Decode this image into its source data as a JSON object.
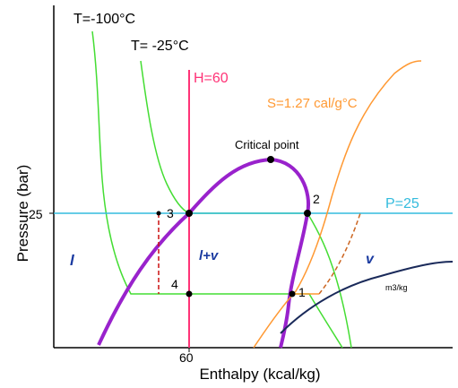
{
  "axes": {
    "xlabel": "Enthalpy (kcal/kg)",
    "ylabel": "Pressure (bar)",
    "x_tick": "60",
    "y_tick": "25"
  },
  "isotherms": {
    "t1_label": "T=-100°C",
    "t2_label": "T= -25°C",
    "color": "#44dd33"
  },
  "isenthalp": {
    "label": "H=60",
    "color": "#ff3377"
  },
  "isentrope": {
    "label": "S=1.27 cal/g°C",
    "color": "#ff9933"
  },
  "isobar": {
    "label": "P=25",
    "color": "#33bbdd"
  },
  "dome": {
    "label": "Critical point",
    "color": "#9922cc"
  },
  "specific_volume": {
    "label": "m3/kg",
    "color": "#1a2a5a"
  },
  "regions": {
    "liquid": "l",
    "mixture": "l+v",
    "vapor": "v",
    "region_color": "#1a3aa0"
  },
  "points": {
    "p1": "1",
    "p2": "2",
    "p3": "3",
    "p4": "4"
  }
}
